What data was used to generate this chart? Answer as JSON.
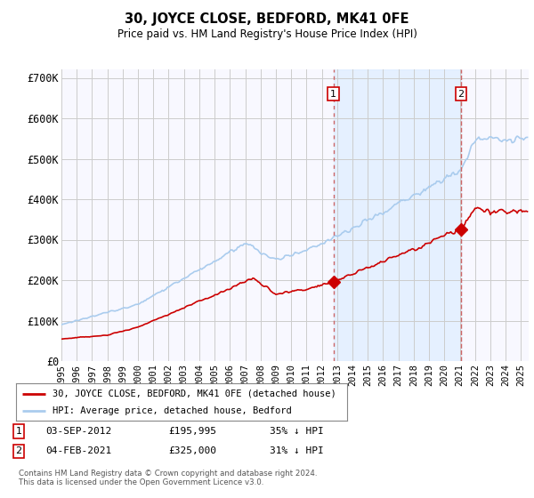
{
  "title": "30, JOYCE CLOSE, BEDFORD, MK41 0FE",
  "subtitle": "Price paid vs. HM Land Registry's House Price Index (HPI)",
  "ylabel_ticks": [
    "£0",
    "£100K",
    "£200K",
    "£300K",
    "£400K",
    "£500K",
    "£600K",
    "£700K"
  ],
  "ytick_vals": [
    0,
    100000,
    200000,
    300000,
    400000,
    500000,
    600000,
    700000
  ],
  "ylim": [
    0,
    720000
  ],
  "xlim_start": 1995.0,
  "xlim_end": 2025.5,
  "sale1_x": 2012.75,
  "sale1_y": 195995,
  "sale1_hpi_y": 301531,
  "sale2_x": 2021.08,
  "sale2_y": 325000,
  "sale2_hpi_y": 471015,
  "line1_color": "#cc0000",
  "line2_color": "#aaccee",
  "vline1_color": "#cc6666",
  "vline2_color": "#cc6666",
  "shade_color": "#ddeeff",
  "legend_label1": "30, JOYCE CLOSE, BEDFORD, MK41 0FE (detached house)",
  "legend_label2": "HPI: Average price, detached house, Bedford",
  "sale1_date": "03-SEP-2012",
  "sale1_price": "£195,995",
  "sale1_hpi_pct": "35% ↓ HPI",
  "sale2_date": "04-FEB-2021",
  "sale2_price": "£325,000",
  "sale2_hpi_pct": "31% ↓ HPI",
  "footer": "Contains HM Land Registry data © Crown copyright and database right 2024.\nThis data is licensed under the Open Government Licence v3.0.",
  "background_color": "#ffffff",
  "plot_background": "#f8f8ff"
}
